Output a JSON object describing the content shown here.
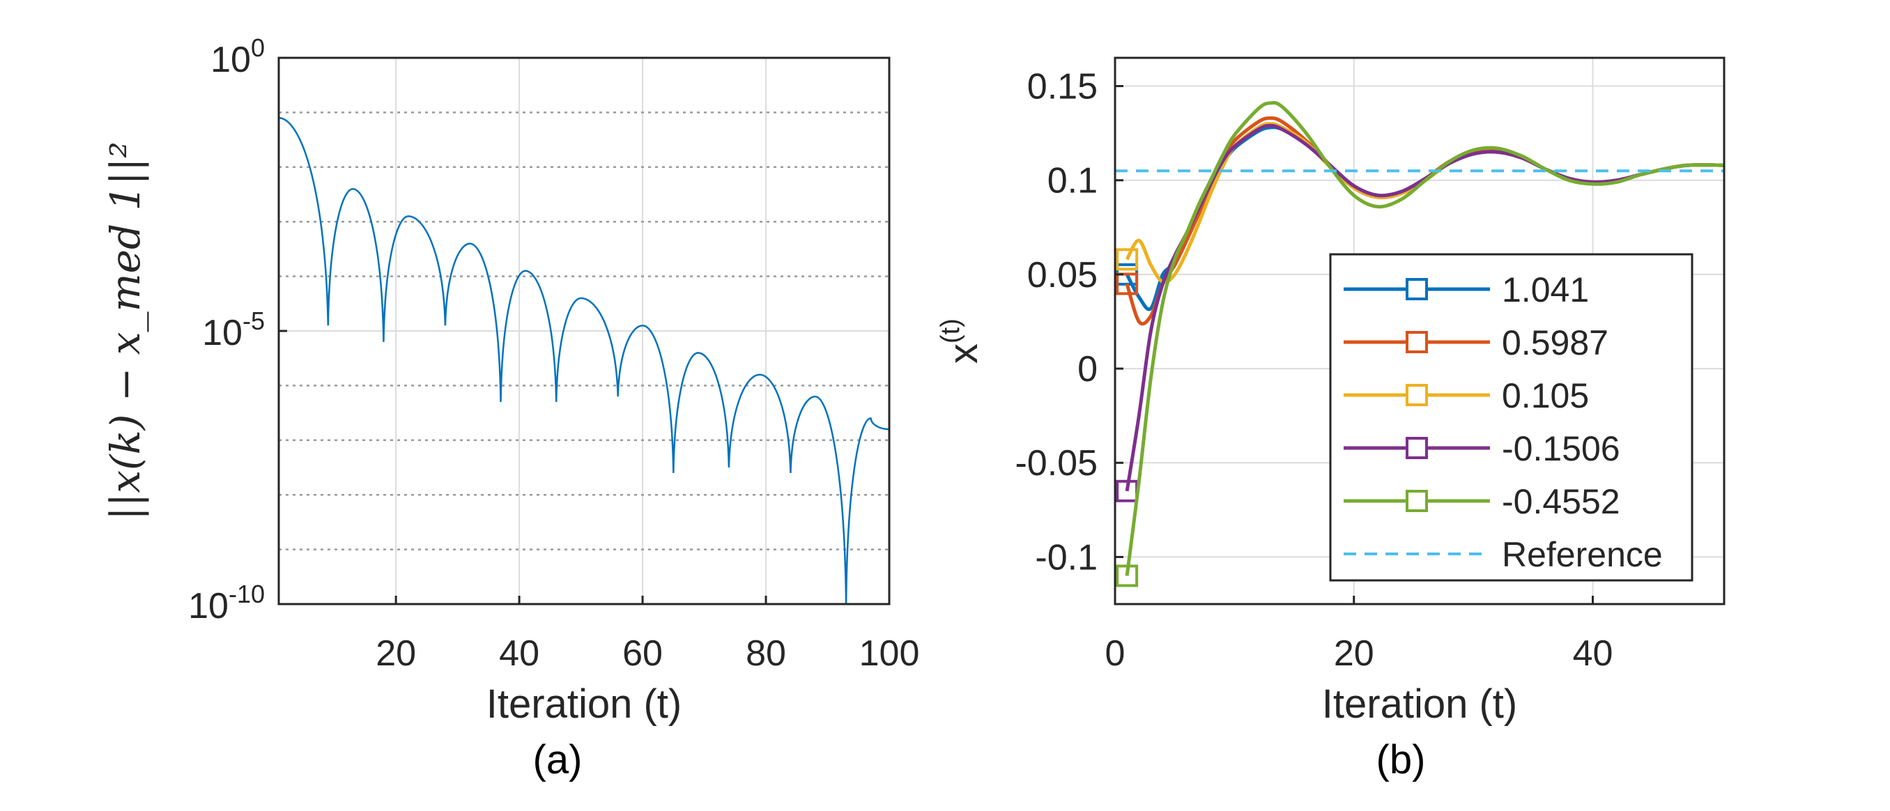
{
  "chart_data": [
    {
      "id": "a",
      "type": "line",
      "caption": "(a)",
      "title": "",
      "xlabel": "Iteration (t)",
      "ylabel": "||x(k) − x_med 1||²",
      "xlim": [
        1,
        100
      ],
      "yscale": "log",
      "ylim_exp": [
        -10,
        0
      ],
      "xticks": [
        20,
        40,
        60,
        80,
        100
      ],
      "yticks": [
        {
          "base": "10",
          "exp": "0",
          "value": 0
        },
        {
          "base": "10",
          "exp": "-5",
          "value": -5
        },
        {
          "base": "10",
          "exp": "-10",
          "value": -10
        }
      ],
      "grid": true,
      "color": "#0072BD",
      "peaks": [
        {
          "x": 1,
          "log": -1.1
        },
        {
          "x": 13,
          "log": -2.4
        },
        {
          "x": 22,
          "log": -2.9
        },
        {
          "x": 32,
          "log": -3.4
        },
        {
          "x": 41,
          "log": -3.9
        },
        {
          "x": 50,
          "log": -4.4
        },
        {
          "x": 60,
          "log": -4.9
        },
        {
          "x": 69,
          "log": -5.4
        },
        {
          "x": 79,
          "log": -5.8
        },
        {
          "x": 88,
          "log": -6.2
        },
        {
          "x": 97,
          "log": -6.6
        },
        {
          "x": 100,
          "log": -6.8
        }
      ],
      "dips": [
        {
          "x": 9,
          "log": -4.9
        },
        {
          "x": 18,
          "log": -5.2
        },
        {
          "x": 28,
          "log": -4.9
        },
        {
          "x": 37,
          "log": -6.3
        },
        {
          "x": 46,
          "log": -6.3
        },
        {
          "x": 56,
          "log": -6.2
        },
        {
          "x": 65,
          "log": -7.6
        },
        {
          "x": 74,
          "log": -7.5
        },
        {
          "x": 84,
          "log": -7.6
        },
        {
          "x": 93,
          "log": -10.0
        }
      ]
    },
    {
      "id": "b",
      "type": "line",
      "caption": "(b)",
      "title": "",
      "xlabel": "Iteration (t)",
      "ylabel": "x",
      "ylabel_sup": "(t)",
      "xlim": [
        0,
        51
      ],
      "ylim": [
        -0.125,
        0.165
      ],
      "xticks": [
        0,
        20,
        40
      ],
      "yticks": [
        -0.1,
        -0.05,
        0,
        0.05,
        0.1,
        0.15
      ],
      "ytick_labels": [
        "-0.1",
        "-0.05",
        "0",
        "0.05",
        "0.1",
        "0.15"
      ],
      "grid": true,
      "legend_position": "bottom-right",
      "reference": {
        "name": "Reference",
        "value": 0.105,
        "color": "#4DBEEE"
      },
      "series": [
        {
          "name": "1.041",
          "color": "#0072BD",
          "x": [
            1,
            2,
            3,
            4,
            5,
            6,
            7,
            8,
            9,
            10,
            12,
            13,
            14,
            16,
            18,
            20,
            22,
            24,
            26,
            28,
            30,
            32,
            34,
            36,
            38,
            40,
            42,
            44,
            46,
            48,
            51
          ],
          "y": [
            0.05,
            0.038,
            0.032,
            0.05,
            0.056,
            0.07,
            0.082,
            0.095,
            0.108,
            0.117,
            0.126,
            0.128,
            0.127,
            0.12,
            0.108,
            0.097,
            0.092,
            0.094,
            0.101,
            0.109,
            0.114,
            0.115,
            0.112,
            0.106,
            0.101,
            0.099,
            0.1,
            0.103,
            0.106,
            0.108,
            0.108
          ]
        },
        {
          "name": "0.5987",
          "color": "#D95319",
          "x": [
            1,
            2,
            3,
            4,
            5,
            6,
            7,
            8,
            9,
            10,
            12,
            13,
            14,
            16,
            18,
            20,
            22,
            24,
            26,
            28,
            30,
            32,
            34,
            36,
            38,
            40,
            42,
            44,
            46,
            48,
            51
          ],
          "y": [
            0.045,
            0.025,
            0.028,
            0.045,
            0.055,
            0.068,
            0.082,
            0.097,
            0.111,
            0.121,
            0.131,
            0.133,
            0.131,
            0.121,
            0.108,
            0.096,
            0.091,
            0.093,
            0.101,
            0.11,
            0.115,
            0.116,
            0.113,
            0.106,
            0.101,
            0.099,
            0.1,
            0.103,
            0.106,
            0.108,
            0.108
          ]
        },
        {
          "name": "0.105",
          "color": "#EDB120",
          "x": [
            1,
            2,
            3,
            4,
            5,
            6,
            7,
            8,
            9,
            10,
            12,
            13,
            14,
            16,
            18,
            20,
            22,
            24,
            26,
            28,
            30,
            32,
            34,
            36,
            38,
            40,
            42,
            44,
            46,
            48,
            51
          ],
          "y": [
            0.058,
            0.068,
            0.055,
            0.046,
            0.05,
            0.062,
            0.077,
            0.093,
            0.107,
            0.118,
            0.128,
            0.13,
            0.128,
            0.12,
            0.107,
            0.096,
            0.091,
            0.093,
            0.1,
            0.109,
            0.114,
            0.115,
            0.112,
            0.106,
            0.101,
            0.099,
            0.1,
            0.103,
            0.106,
            0.108,
            0.108
          ]
        },
        {
          "name": "-0.1506",
          "color": "#7E2F8E",
          "x": [
            1,
            2,
            3,
            4,
            5,
            6,
            7,
            8,
            9,
            10,
            12,
            13,
            14,
            16,
            18,
            20,
            22,
            24,
            26,
            28,
            30,
            32,
            34,
            36,
            38,
            40,
            42,
            44,
            46,
            48,
            51
          ],
          "y": [
            -0.065,
            -0.025,
            0.02,
            0.045,
            0.06,
            0.072,
            0.085,
            0.098,
            0.11,
            0.118,
            0.127,
            0.129,
            0.127,
            0.119,
            0.108,
            0.097,
            0.092,
            0.094,
            0.101,
            0.109,
            0.114,
            0.115,
            0.112,
            0.106,
            0.101,
            0.099,
            0.1,
            0.103,
            0.106,
            0.108,
            0.108
          ]
        },
        {
          "name": "-0.4552",
          "color": "#77AC30",
          "x": [
            1,
            2,
            3,
            4,
            5,
            6,
            7,
            8,
            9,
            10,
            12,
            13,
            14,
            16,
            18,
            20,
            22,
            24,
            26,
            28,
            30,
            32,
            34,
            36,
            38,
            40,
            42,
            44,
            46,
            48,
            51
          ],
          "y": [
            -0.11,
            -0.06,
            -0.005,
            0.035,
            0.058,
            0.072,
            0.087,
            0.1,
            0.113,
            0.124,
            0.138,
            0.141,
            0.139,
            0.125,
            0.107,
            0.092,
            0.086,
            0.09,
            0.1,
            0.11,
            0.116,
            0.117,
            0.113,
            0.106,
            0.1,
            0.098,
            0.099,
            0.103,
            0.106,
            0.108,
            0.108
          ]
        }
      ]
    }
  ]
}
